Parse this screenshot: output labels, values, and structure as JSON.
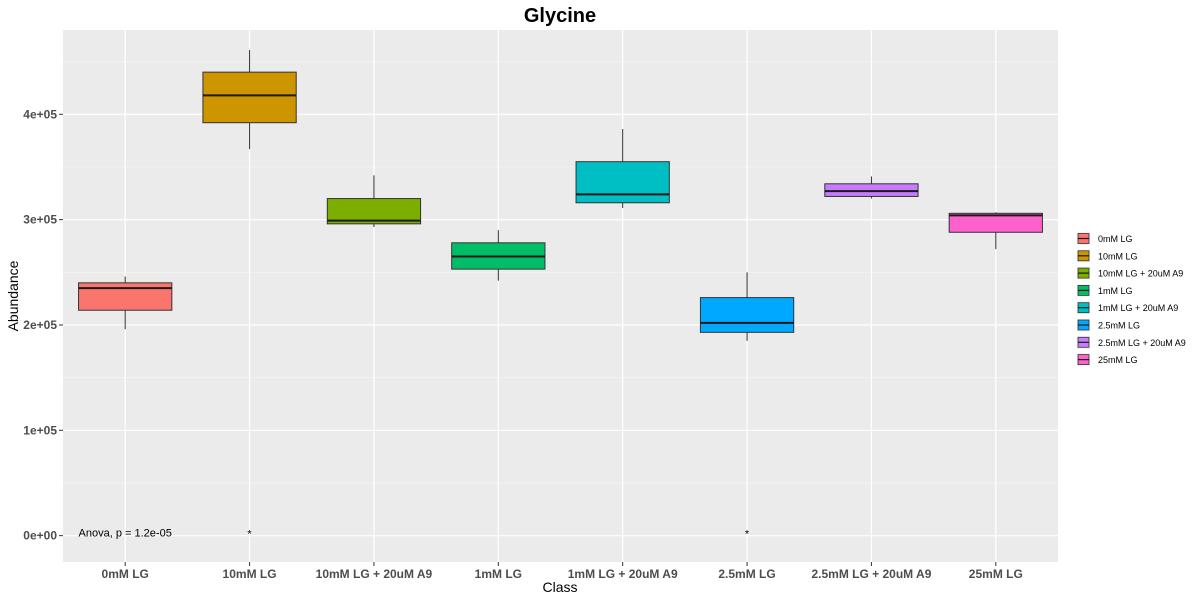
{
  "chart_data": {
    "type": "box",
    "title": "Glycine",
    "xlabel": "Class",
    "ylabel": "Abundance",
    "ylim": [
      -25000,
      480000
    ],
    "yticks": [
      0,
      100000,
      200000,
      300000,
      400000
    ],
    "ytick_labels": [
      "0e+00",
      "1e+05",
      "2e+05",
      "3e+05",
      "4e+05"
    ],
    "grid": true,
    "legend_position": "right",
    "categories": [
      "0mM LG",
      "10mM LG",
      "10mM LG + 20uM A9",
      "1mM LG",
      "1mM LG + 20uM A9",
      "2.5mM LG",
      "2.5mM LG + 20uM A9",
      "25mM LG"
    ],
    "colors": [
      "#F8766D",
      "#CD9600",
      "#7CAE00",
      "#00BE67",
      "#00BFC4",
      "#00A9FF",
      "#C77CFF",
      "#FF61CC"
    ],
    "boxes": [
      {
        "min": 196000,
        "q1": 214000,
        "median": 235000,
        "q3": 240000,
        "max": 246000
      },
      {
        "min": 367000,
        "q1": 392000,
        "median": 418000,
        "q3": 440000,
        "max": 461000
      },
      {
        "min": 293000,
        "q1": 296000,
        "median": 299000,
        "q3": 320000,
        "max": 342000
      },
      {
        "min": 242000,
        "q1": 253000,
        "median": 265000,
        "q3": 278000,
        "max": 290000
      },
      {
        "min": 311000,
        "q1": 316000,
        "median": 324000,
        "q3": 355000,
        "max": 386000
      },
      {
        "min": 185000,
        "q1": 193000,
        "median": 202000,
        "q3": 226000,
        "max": 250000
      },
      {
        "min": 320000,
        "q1": 322000,
        "median": 327000,
        "q3": 334000,
        "max": 341000
      },
      {
        "min": 272000,
        "q1": 288000,
        "median": 304000,
        "q3": 306000,
        "max": 307000
      }
    ],
    "annotations": [
      {
        "text": "Anova, p = 1.2e-05",
        "category_index": 0,
        "y": 3000
      },
      {
        "text": "*",
        "category_index": 1,
        "y": 2000
      },
      {
        "text": "*",
        "category_index": 5,
        "y": 2000
      }
    ],
    "legend": [
      "0mM LG",
      "10mM LG",
      "10mM LG + 20uM A9",
      "1mM LG",
      "1mM LG + 20uM A9",
      "2.5mM LG",
      "2.5mM LG + 20uM A9",
      "25mM LG"
    ]
  }
}
